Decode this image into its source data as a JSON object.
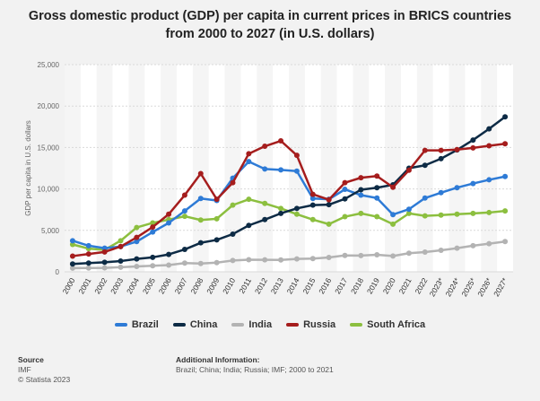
{
  "chart_data": {
    "type": "line",
    "title": "Gross domestic product (GDP) per capita in current prices in BRICS countries from 2000 to 2027 (in U.S. dollars)",
    "ylabel": "GDP per capita in U.S. dollars",
    "xlabel": "",
    "ylim": [
      0,
      25000
    ],
    "yticks": [
      0,
      5000,
      10000,
      15000,
      20000,
      25000
    ],
    "ytick_labels": [
      "0",
      "5,000",
      "10,000",
      "15,000",
      "20,000",
      "25,000"
    ],
    "categories": [
      "2000",
      "2001",
      "2002",
      "2003",
      "2004",
      "2005",
      "2006",
      "2007",
      "2008",
      "2009",
      "2010",
      "2011",
      "2012",
      "2013",
      "2014",
      "2015",
      "2016",
      "2017",
      "2018",
      "2019",
      "2020",
      "2021",
      "2022",
      "2023*",
      "2024*",
      "2025*",
      "2026*",
      "2027*"
    ],
    "series": [
      {
        "name": "Brazil",
        "color": "#2e7bd6",
        "values": [
          3750,
          3150,
          2850,
          3050,
          3650,
          4800,
          5900,
          7350,
          8850,
          8600,
          11300,
          13300,
          12400,
          12300,
          12150,
          8850,
          8750,
          9950,
          9250,
          8900,
          6900,
          7550,
          8900,
          9550,
          10150,
          10650,
          11100,
          11500
        ]
      },
      {
        "name": "China",
        "color": "#0d2b45",
        "values": [
          950,
          1050,
          1150,
          1300,
          1550,
          1750,
          2100,
          2700,
          3500,
          3850,
          4550,
          5600,
          6300,
          7050,
          7650,
          8050,
          8100,
          8800,
          9900,
          10150,
          10500,
          12500,
          12850,
          13650,
          14700,
          15900,
          17250,
          18700
        ]
      },
      {
        "name": "India",
        "color": "#b3b3b3",
        "values": [
          450,
          460,
          480,
          560,
          650,
          730,
          810,
          1050,
          1000,
          1110,
          1360,
          1460,
          1450,
          1440,
          1560,
          1590,
          1730,
          1980,
          1960,
          2050,
          1910,
          2250,
          2380,
          2600,
          2850,
          3150,
          3400,
          3650
        ]
      },
      {
        "name": "Russia",
        "color": "#a51d1d",
        "values": [
          1900,
          2150,
          2400,
          3050,
          4150,
          5400,
          6950,
          9250,
          11850,
          8750,
          10750,
          14250,
          15150,
          15800,
          14050,
          9350,
          8700,
          10750,
          11350,
          11550,
          10200,
          12250,
          14650,
          14650,
          14750,
          14950,
          15200,
          15450
        ]
      },
      {
        "name": "South Africa",
        "color": "#8cbf3f",
        "values": [
          3300,
          2800,
          2650,
          3750,
          5350,
          5900,
          6300,
          6700,
          6250,
          6400,
          8050,
          8750,
          8250,
          7650,
          6950,
          6300,
          5750,
          6650,
          7050,
          6650,
          5750,
          7050,
          6750,
          6850,
          6950,
          7050,
          7150,
          7350
        ]
      }
    ]
  },
  "source": {
    "label": "Source",
    "name": "IMF",
    "copyright": "© Statista 2023"
  },
  "additional": {
    "label": "Additional Information:",
    "text": "Brazil; China; India; Russia; IMF; 2000 to 2021"
  }
}
